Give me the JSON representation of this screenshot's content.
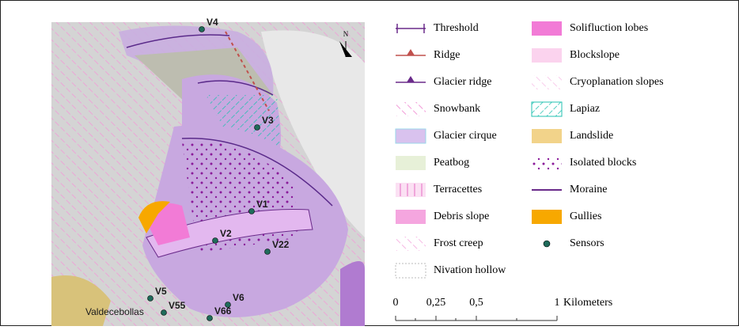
{
  "map": {
    "north": "N",
    "sensors": [
      {
        "label": "V4"
      },
      {
        "label": "V3"
      },
      {
        "label": "V1"
      },
      {
        "label": "V2"
      },
      {
        "label": "V22"
      },
      {
        "label": "V5"
      },
      {
        "label": "V55"
      },
      {
        "label": "V6"
      },
      {
        "label": "V66"
      }
    ],
    "place": "Valdecebollas"
  },
  "legend": {
    "left": [
      "Threshold",
      "Ridge",
      "Glacier ridge",
      "Snowbank",
      "Glacier cirque",
      "Peatbog",
      "Terracettes",
      "Debris slope",
      "Frost creep",
      "Nivation hollow"
    ],
    "right": [
      "Solifluction lobes",
      "Blockslope",
      "Cryoplanation slopes",
      "Lapiaz",
      "Landslide",
      "Isolated blocks",
      "Moraine",
      "Gullies",
      "Sensors"
    ]
  },
  "scale": {
    "ticks": [
      "0",
      "0,25",
      "0,5",
      "1"
    ],
    "unit": "Kilometers"
  }
}
